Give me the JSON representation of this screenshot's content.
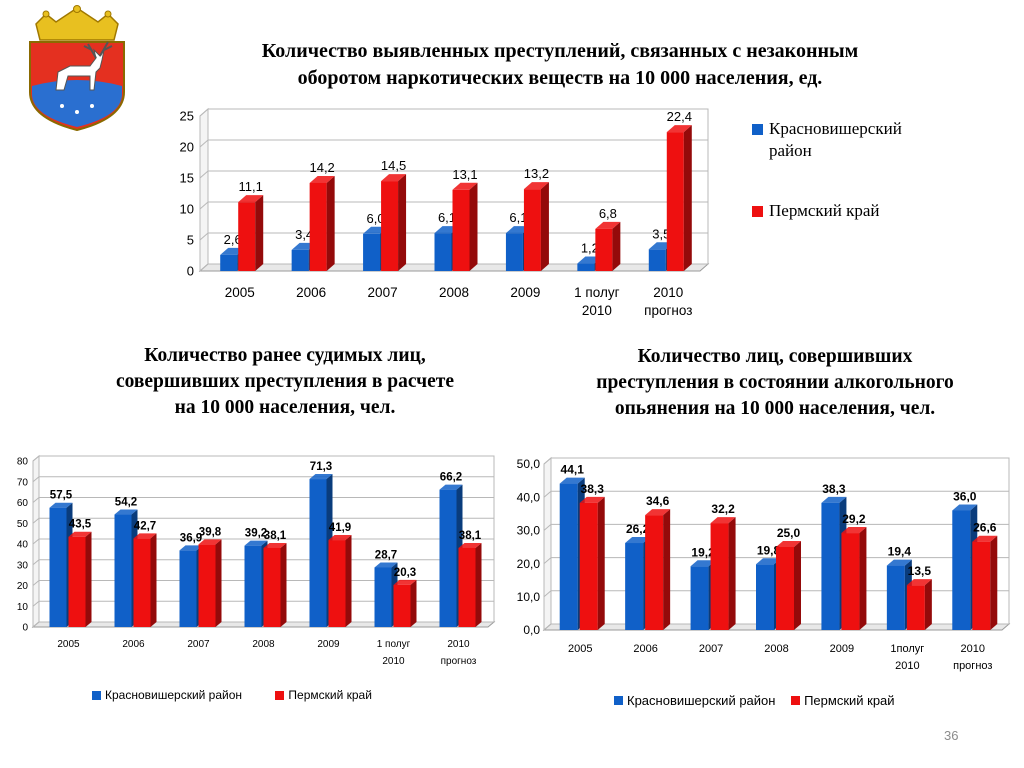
{
  "slide_number": "36",
  "colors": {
    "blue": "#1060c8",
    "red": "#ee1010"
  },
  "crest_icon": "coat-of-arms-icon",
  "chart_data": [
    {
      "type": "bar",
      "title": [
        "Количество выявленных преступлений, связанных с незаконным",
        "оборотом наркотических веществ на 10 000 населения, ед."
      ],
      "categories": [
        [
          "2005"
        ],
        [
          "2006"
        ],
        [
          "2007"
        ],
        [
          "2008"
        ],
        [
          "2009"
        ],
        [
          "1 полуг",
          "2010"
        ],
        [
          "2010",
          "прогноз"
        ]
      ],
      "series": [
        {
          "name": [
            "Красновишерский",
            "район"
          ],
          "color": "#1060c8",
          "values": [
            2.6,
            3.4,
            6.0,
            6.1,
            6.1,
            1.2,
            3.5
          ],
          "labels": [
            "2,6",
            "3,4",
            "6,0",
            "6,1",
            "6,1",
            "1,2",
            "3,5"
          ]
        },
        {
          "name": [
            "Пермский край"
          ],
          "color": "#ee1010",
          "values": [
            11.1,
            14.2,
            14.5,
            13.1,
            13.2,
            6.8,
            22.4
          ],
          "labels": [
            "11,1",
            "14,2",
            "14,5",
            "13,1",
            "13,2",
            "6,8",
            "22,4"
          ]
        }
      ],
      "ylim": [
        0,
        25
      ],
      "yticks": [
        "0",
        "5",
        "10",
        "15",
        "20",
        "25"
      ],
      "grid": true,
      "legend": "right"
    },
    {
      "type": "bar",
      "title": [
        "Количество ранее судимых лиц,",
        "совершивших  преступления в расчете",
        "на 10 000 населения, чел."
      ],
      "categories": [
        [
          "2005"
        ],
        [
          "2006"
        ],
        [
          "2007"
        ],
        [
          "2008"
        ],
        [
          "2009"
        ],
        [
          "1 полуг",
          "2010"
        ],
        [
          "2010",
          "прогноз"
        ]
      ],
      "series": [
        {
          "name": [
            "Красновишерский район"
          ],
          "color": "#1060c8",
          "values": [
            57.5,
            54.2,
            36.9,
            39.2,
            71.3,
            28.7,
            66.2
          ],
          "labels": [
            "57,5",
            "54,2",
            "36,9",
            "39,2",
            "71,3",
            "28,7",
            "66,2"
          ]
        },
        {
          "name": [
            "Пермский край"
          ],
          "color": "#ee1010",
          "values": [
            43.5,
            42.7,
            39.8,
            38.1,
            41.9,
            20.3,
            38.1
          ],
          "labels": [
            "43,5",
            "42,7",
            "39,8",
            "38,1",
            "41,9",
            "20,3",
            "38,1"
          ]
        }
      ],
      "ylim": [
        0,
        80
      ],
      "yticks": [
        "0",
        "10",
        "20",
        "30",
        "40",
        "50",
        "60",
        "70",
        "80"
      ],
      "grid": true,
      "legend": "bottom"
    },
    {
      "type": "bar",
      "title": [
        "Количество лиц, совершивших",
        "преступления в состоянии алкогольного",
        "опьянения на 10 000 населения, чел."
      ],
      "categories": [
        [
          "2005"
        ],
        [
          "2006"
        ],
        [
          "2007"
        ],
        [
          "2008"
        ],
        [
          "2009"
        ],
        [
          "1полуг",
          "2010"
        ],
        [
          "2010",
          "прогноз"
        ]
      ],
      "series": [
        {
          "name": [
            "Красновишерский район"
          ],
          "color": "#1060c8",
          "values": [
            44.1,
            26.2,
            19.2,
            19.8,
            38.3,
            19.4,
            36.0
          ],
          "labels": [
            "44,1",
            "26,2",
            "19,2",
            "19,8",
            "38,3",
            "19,4",
            "36,0"
          ]
        },
        {
          "name": [
            "Пермский край"
          ],
          "color": "#ee1010",
          "values": [
            38.3,
            34.6,
            32.2,
            25.0,
            29.2,
            13.5,
            26.6
          ],
          "labels": [
            "38,3",
            "34,6",
            "32,2",
            "25,0",
            "29,2",
            "13,5",
            "26,6"
          ]
        }
      ],
      "ylim": [
        0,
        50
      ],
      "yticks": [
        "0,0",
        "10,0",
        "20,0",
        "30,0",
        "40,0",
        "50,0"
      ],
      "grid": true,
      "legend": "bottom"
    }
  ]
}
